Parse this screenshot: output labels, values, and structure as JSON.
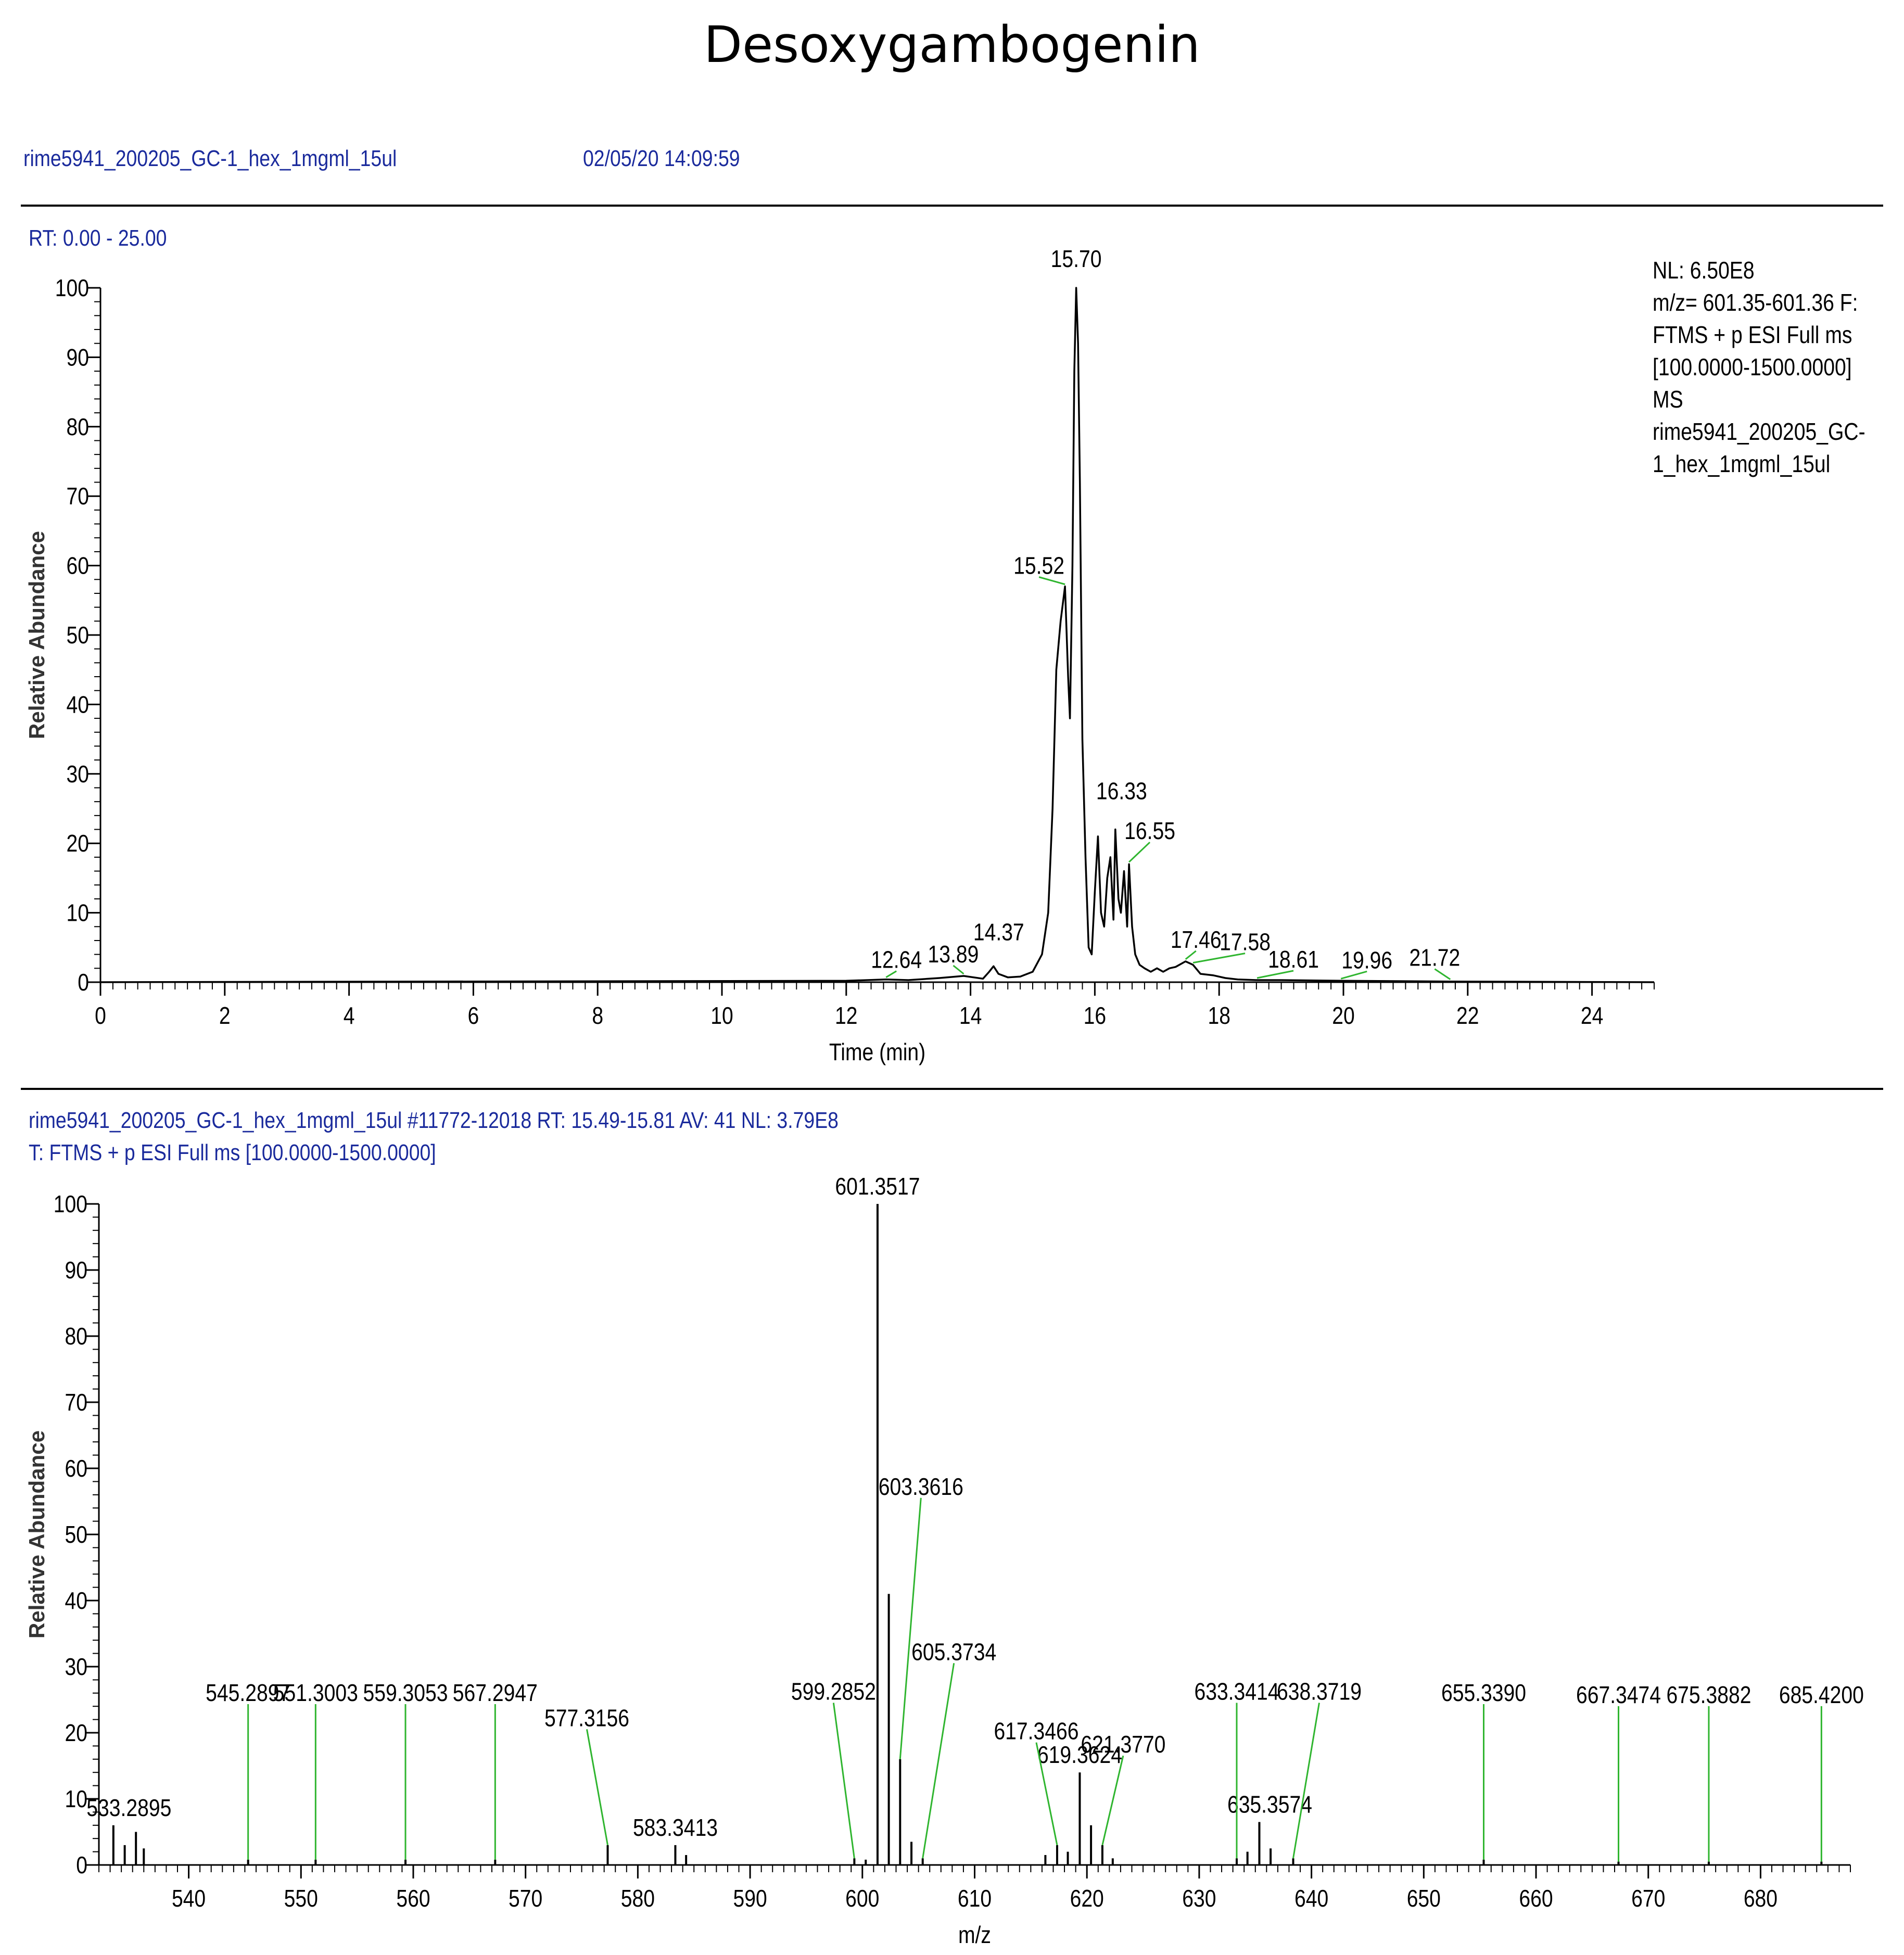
{
  "header": {
    "title": "Desoxygambogenin",
    "file_name": "rime5941_200205_GC-1_hex_1mgml_15ul",
    "datetime": "02/05/20 14:09:59"
  },
  "chromatogram": {
    "rt_range_label": "RT: 0.00 - 25.00",
    "side_info": [
      "NL: 6.50E8",
      "m/z= 601.35-601.36 F:",
      "FTMS + p ESI Full ms",
      "[100.0000-1500.0000]",
      "MS",
      "rime5941_200205_GC-",
      "1_hex_1mgml_15ul"
    ]
  },
  "spectrum": {
    "scan_header": "rime5941_200205_GC-1_hex_1mgml_15ul #11772-12018   RT: 15.49-15.81   AV: 41   NL: 3.79E8",
    "filter_line": "T: FTMS + p ESI Full ms [100.0000-1500.0000]"
  },
  "chart_data": [
    {
      "type": "line",
      "xlabel": "Time (min)",
      "ylabel": "Relative Abundance",
      "xlim": [
        0,
        25
      ],
      "ylim": [
        0,
        100
      ],
      "x_ticks": [
        0,
        2,
        4,
        6,
        8,
        10,
        12,
        14,
        16,
        18,
        20,
        22,
        24
      ],
      "y_ticks": [
        0,
        10,
        20,
        30,
        40,
        50,
        60,
        70,
        80,
        90,
        100
      ],
      "series": [
        {
          "x": [
            0,
            12.0,
            12.64,
            13.0,
            13.5,
            13.89,
            14.2,
            14.3,
            14.37,
            14.45,
            14.6,
            14.8,
            15.0,
            15.15,
            15.25,
            15.32,
            15.38,
            15.45,
            15.52,
            15.57,
            15.6,
            15.64,
            15.67,
            15.7,
            15.73,
            15.76,
            15.8,
            15.85,
            15.9,
            15.95,
            16.0,
            16.05,
            16.1,
            16.15,
            16.2,
            16.25,
            16.3,
            16.33,
            16.38,
            16.42,
            16.47,
            16.52,
            16.55,
            16.6,
            16.65,
            16.72,
            16.8,
            16.9,
            17.0,
            17.1,
            17.2,
            17.3,
            17.46,
            17.58,
            17.7,
            17.9,
            18.1,
            18.3,
            18.61,
            19.0,
            19.96,
            21.72,
            25.0
          ],
          "y": [
            0,
            0.2,
            0.4,
            0.3,
            0.6,
            0.9,
            0.5,
            1.5,
            2.3,
            1.2,
            0.7,
            0.8,
            1.5,
            4,
            10,
            25,
            45,
            52,
            57,
            44,
            38,
            60,
            88,
            100,
            92,
            72,
            35,
            18,
            5,
            4,
            13,
            21,
            10,
            8,
            15,
            18,
            9,
            22,
            12,
            10,
            16,
            8,
            17,
            8,
            4,
            2.5,
            2,
            1.5,
            2.0,
            1.5,
            2.0,
            2.2,
            3.0,
            2.5,
            1.2,
            1.0,
            0.6,
            0.4,
            0.3,
            0.3,
            0.2,
            0.1,
            0
          ]
        }
      ],
      "peak_labels": [
        {
          "label": "15.70",
          "x": 15.7,
          "y": 100
        },
        {
          "label": "15.52",
          "x": 15.52,
          "y": 57
        },
        {
          "label": "16.33",
          "x": 16.33,
          "y": 22
        },
        {
          "label": "16.55",
          "x": 16.55,
          "y": 17
        },
        {
          "label": "12.64",
          "x": 12.64,
          "y": 0.4
        },
        {
          "label": "13.89",
          "x": 13.89,
          "y": 0.9
        },
        {
          "label": "14.37",
          "x": 14.37,
          "y": 2.3
        },
        {
          "label": "17.46",
          "x": 17.46,
          "y": 3.0
        },
        {
          "label": "17.58",
          "x": 17.58,
          "y": 2.5
        },
        {
          "label": "18.61",
          "x": 18.61,
          "y": 0.3
        },
        {
          "label": "19.96",
          "x": 19.96,
          "y": 0.2
        },
        {
          "label": "21.72",
          "x": 21.72,
          "y": 0.1
        }
      ]
    },
    {
      "type": "bar",
      "xlabel": "m/z",
      "ylabel": "Relative Abundance",
      "xlim": [
        532,
        688
      ],
      "ylim": [
        0,
        100
      ],
      "x_ticks": [
        540,
        550,
        560,
        570,
        580,
        590,
        600,
        610,
        620,
        630,
        640,
        650,
        660,
        670,
        680
      ],
      "y_ticks": [
        0,
        10,
        20,
        30,
        40,
        50,
        60,
        70,
        80,
        90,
        100
      ],
      "peaks": [
        {
          "mz": 533.2895,
          "intensity": 6
        },
        {
          "mz": 534.3,
          "intensity": 3
        },
        {
          "mz": 535.3,
          "intensity": 5
        },
        {
          "mz": 536.0,
          "intensity": 2.5
        },
        {
          "mz": 545.2897,
          "intensity": 0.8
        },
        {
          "mz": 551.3003,
          "intensity": 0.8
        },
        {
          "mz": 559.3053,
          "intensity": 0.8
        },
        {
          "mz": 567.2947,
          "intensity": 0.8
        },
        {
          "mz": 577.3156,
          "intensity": 3
        },
        {
          "mz": 583.3413,
          "intensity": 3
        },
        {
          "mz": 584.3,
          "intensity": 1.5
        },
        {
          "mz": 599.2852,
          "intensity": 1
        },
        {
          "mz": 600.3,
          "intensity": 0.8
        },
        {
          "mz": 601.3517,
          "intensity": 100
        },
        {
          "mz": 602.355,
          "intensity": 41
        },
        {
          "mz": 603.3616,
          "intensity": 16
        },
        {
          "mz": 604.37,
          "intensity": 3.5
        },
        {
          "mz": 605.3734,
          "intensity": 1
        },
        {
          "mz": 616.3,
          "intensity": 1.5
        },
        {
          "mz": 617.3466,
          "intensity": 3
        },
        {
          "mz": 618.3,
          "intensity": 2
        },
        {
          "mz": 619.3624,
          "intensity": 14
        },
        {
          "mz": 620.365,
          "intensity": 6
        },
        {
          "mz": 621.377,
          "intensity": 3
        },
        {
          "mz": 622.3,
          "intensity": 1
        },
        {
          "mz": 633.3414,
          "intensity": 1
        },
        {
          "mz": 634.3,
          "intensity": 2
        },
        {
          "mz": 635.3574,
          "intensity": 6.5
        },
        {
          "mz": 636.36,
          "intensity": 2.5
        },
        {
          "mz": 638.3719,
          "intensity": 1
        },
        {
          "mz": 655.339,
          "intensity": 0.8
        },
        {
          "mz": 667.3474,
          "intensity": 0.5
        },
        {
          "mz": 675.3882,
          "intensity": 0.5
        },
        {
          "mz": 685.42,
          "intensity": 0.5
        }
      ],
      "peak_labels": [
        {
          "label": "601.3517",
          "mz": 601.3517
        },
        {
          "label": "603.3616",
          "mz": 603.3616
        },
        {
          "label": "619.3624",
          "mz": 619.3624
        },
        {
          "label": "605.3734",
          "mz": 605.3734
        },
        {
          "label": "621.3770",
          "mz": 621.377
        },
        {
          "label": "635.3574",
          "mz": 635.3574
        },
        {
          "label": "617.3466",
          "mz": 617.3466
        },
        {
          "label": "533.2895",
          "mz": 533.2895
        },
        {
          "label": "577.3156",
          "mz": 577.3156
        },
        {
          "label": "583.3413",
          "mz": 583.3413
        },
        {
          "label": "545.2897",
          "mz": 545.2897
        },
        {
          "label": "551.3003",
          "mz": 551.3003
        },
        {
          "label": "559.3053",
          "mz": 559.3053
        },
        {
          "label": "567.2947",
          "mz": 567.2947
        },
        {
          "label": "599.2852",
          "mz": 599.2852
        },
        {
          "label": "633.3414",
          "mz": 633.3414
        },
        {
          "label": "638.3719",
          "mz": 638.3719
        },
        {
          "label": "655.3390",
          "mz": 655.339
        },
        {
          "label": "667.3474",
          "mz": 667.3474
        },
        {
          "label": "675.3882",
          "mz": 675.3882
        },
        {
          "label": "685.4200",
          "mz": 685.42
        }
      ]
    }
  ]
}
